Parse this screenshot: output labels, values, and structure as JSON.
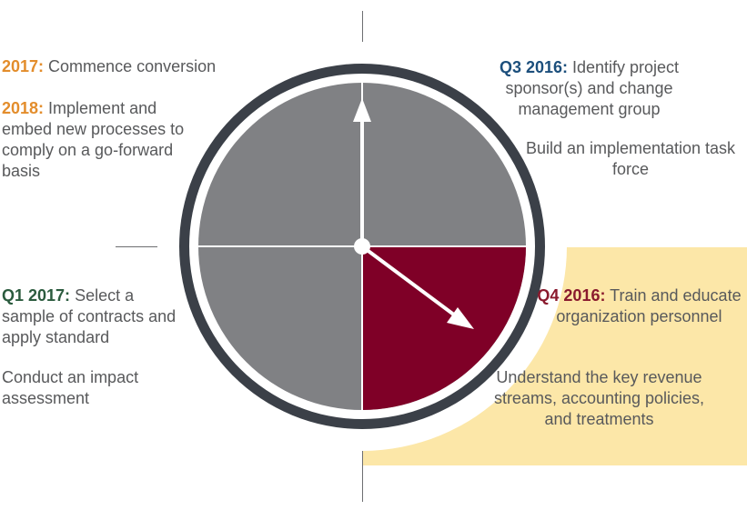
{
  "colors": {
    "highlight": "#fce7a8",
    "bezel": "#3b4048",
    "face_gray": "#808184",
    "active_quadrant": "#7f0027",
    "orange_label": "#e38d2c",
    "navy_label": "#1c4f7c",
    "green_label": "#2b5b3e",
    "crimson_label": "#8a1a2e"
  },
  "top_left": {
    "item1_label": "2017:",
    "item1_text": " Commence conversion",
    "item2_label": "2018:",
    "item2_text": " Implement and embed new processes to comply on a go-forward basis"
  },
  "top_right": {
    "item1_label": "Q3 2016:",
    "item1_text": " Identify project sponsor(s) and change management group",
    "item2_text": "Build an implementation task force"
  },
  "bottom_left": {
    "item1_label": "Q1 2017:",
    "item1_text": " Select a sample of contracts and apply standard",
    "item2_text": "Conduct an impact assessment"
  },
  "bottom_right": {
    "item1_label": "Q4 2016:",
    "item1_text": " Train and educate organization personnel",
    "item2_text": "Understand the key revenue streams, accounting policies, and treatments"
  },
  "clock": {
    "active_quadrant": "bottom-right",
    "hand_long": "up-12",
    "hand_short": "pointing-4-oclock"
  }
}
